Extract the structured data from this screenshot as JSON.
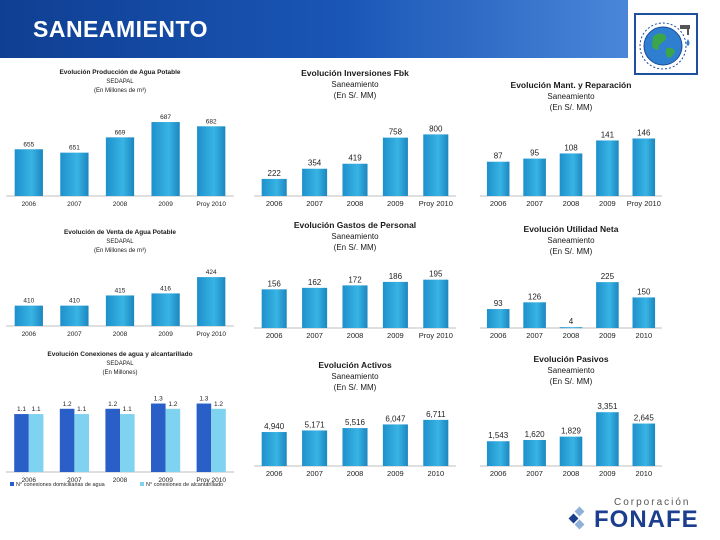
{
  "page": {
    "title": "SANEAMIENTO"
  },
  "brand": {
    "small": "Corporación",
    "big": "FONAFE"
  },
  "colors": {
    "bar": "#27a4d8",
    "bar_light": "#7fd2f0",
    "series2": "#2a5fc7"
  },
  "charts": [
    {
      "id": "c1",
      "title_lines": [
        "Evolución Producción de Agua Potable",
        "SEDAPAL",
        "(En Millones de m³)"
      ],
      "chart_data": {
        "type": "bar",
        "categories": [
          "2006",
          "2007",
          "2008",
          "2009",
          "Proy 2010"
        ],
        "values": [
          655,
          651,
          669,
          687,
          682
        ],
        "labels": [
          "655",
          "651",
          "669",
          "687",
          "682"
        ],
        "ylim": [
          600,
          700
        ]
      }
    },
    {
      "id": "c2",
      "title_lines": [
        "Evolución Inversiones Fbk",
        "Saneamiento",
        "(En S/. MM)"
      ],
      "chart_data": {
        "type": "bar",
        "categories": [
          "2006",
          "2007",
          "2008",
          "2009",
          "Proy 2010"
        ],
        "values": [
          222,
          354,
          419,
          758,
          800
        ],
        "labels": [
          "222",
          "354",
          "419",
          "758",
          "800"
        ],
        "ylim": [
          0,
          1000
        ]
      }
    },
    {
      "id": "c3",
      "title_lines": [
        "Evolución Mant. y Reparación",
        "Saneamiento",
        "(En S/. MM)"
      ],
      "chart_data": {
        "type": "bar",
        "categories": [
          "2006",
          "2007",
          "2008",
          "2009",
          "Proy 2010"
        ],
        "values": [
          87,
          95,
          108,
          141,
          146
        ],
        "labels": [
          "87",
          "95",
          "108",
          "141",
          "146"
        ],
        "ylim": [
          0,
          165
        ]
      }
    },
    {
      "id": "c4",
      "title_lines": [
        "Evolución de Venta de Agua Potable",
        "SEDAPAL",
        "(En Millones de m³)"
      ],
      "chart_data": {
        "type": "bar",
        "categories": [
          "2006",
          "2007",
          "2008",
          "2009",
          "Proy 2010"
        ],
        "values": [
          410,
          410,
          415,
          416,
          424
        ],
        "labels": [
          "410",
          "410",
          "415",
          "416",
          "424"
        ],
        "ylim": [
          400,
          427
        ]
      }
    },
    {
      "id": "c5",
      "title_lines": [
        "Evolución Gastos de Personal",
        "Saneamiento",
        "(En S/. MM)"
      ],
      "chart_data": {
        "type": "bar",
        "categories": [
          "2006",
          "2007",
          "2008",
          "2009",
          "Proy 2010"
        ],
        "values": [
          156,
          162,
          172,
          186,
          195
        ],
        "labels": [
          "156",
          "162",
          "172",
          "186",
          "195"
        ],
        "ylim": [
          0,
          230
        ]
      }
    },
    {
      "id": "c6",
      "title_lines": [
        "Evolución Utilidad Neta",
        "Saneamiento",
        "(En S/. MM)"
      ],
      "chart_data": {
        "type": "bar",
        "categories": [
          "2006",
          "2007",
          "2008",
          "2009",
          "2010"
        ],
        "values": [
          93,
          126,
          4,
          225,
          150
        ],
        "labels": [
          "93",
          "126",
          "4",
          "225",
          "150"
        ],
        "ylim": [
          0,
          260
        ]
      }
    },
    {
      "id": "c7",
      "title_lines": [
        "Evolución Conexiones de agua y alcantarillado",
        "SEDAPAL",
        "(En Millones)"
      ],
      "chart_data": {
        "type": "bar",
        "categories": [
          "2006",
          "2007",
          "2008",
          "2009",
          "Proy 2010"
        ],
        "series": [
          {
            "name": "N° conexiones domiciliarias de agua",
            "values": [
              1.1,
              1.2,
              1.2,
              1.3,
              1.3
            ],
            "labels": [
              "1.1",
              "1.2",
              "1.2",
              "1.3",
              "1.3"
            ]
          },
          {
            "name": "N° conexiones de alcantarillado",
            "values": [
              1.1,
              1.1,
              1.1,
              1.2,
              1.2
            ],
            "labels": [
              "1.1",
              "1.1",
              "1.1",
              "1.2",
              "1.2"
            ]
          }
        ],
        "ylim": [
          0,
          1.5
        ]
      }
    },
    {
      "id": "c8",
      "title_lines": [
        "Evolución Activos",
        "Saneamiento",
        "(En S/. MM)"
      ],
      "chart_data": {
        "type": "bar",
        "categories": [
          "2006",
          "2007",
          "2008",
          "2009",
          "2010"
        ],
        "values": [
          4940,
          5171,
          5516,
          6047,
          6711
        ],
        "labels": [
          "4,940",
          "5,171",
          "5,516",
          "6,047",
          "6,711"
        ],
        "ylim": [
          0,
          8000
        ]
      }
    },
    {
      "id": "c9",
      "title_lines": [
        "Evolución Pasivos",
        "Saneamiento",
        "(En S/. MM)"
      ],
      "chart_data": {
        "type": "bar",
        "categories": [
          "2006",
          "2007",
          "2008",
          "2009",
          "2010"
        ],
        "values": [
          1543,
          1620,
          1829,
          3351,
          2645
        ],
        "labels": [
          "1,543",
          "1,620",
          "1,829",
          "3,351",
          "2,645"
        ],
        "ylim": [
          0,
          3800
        ]
      }
    }
  ]
}
